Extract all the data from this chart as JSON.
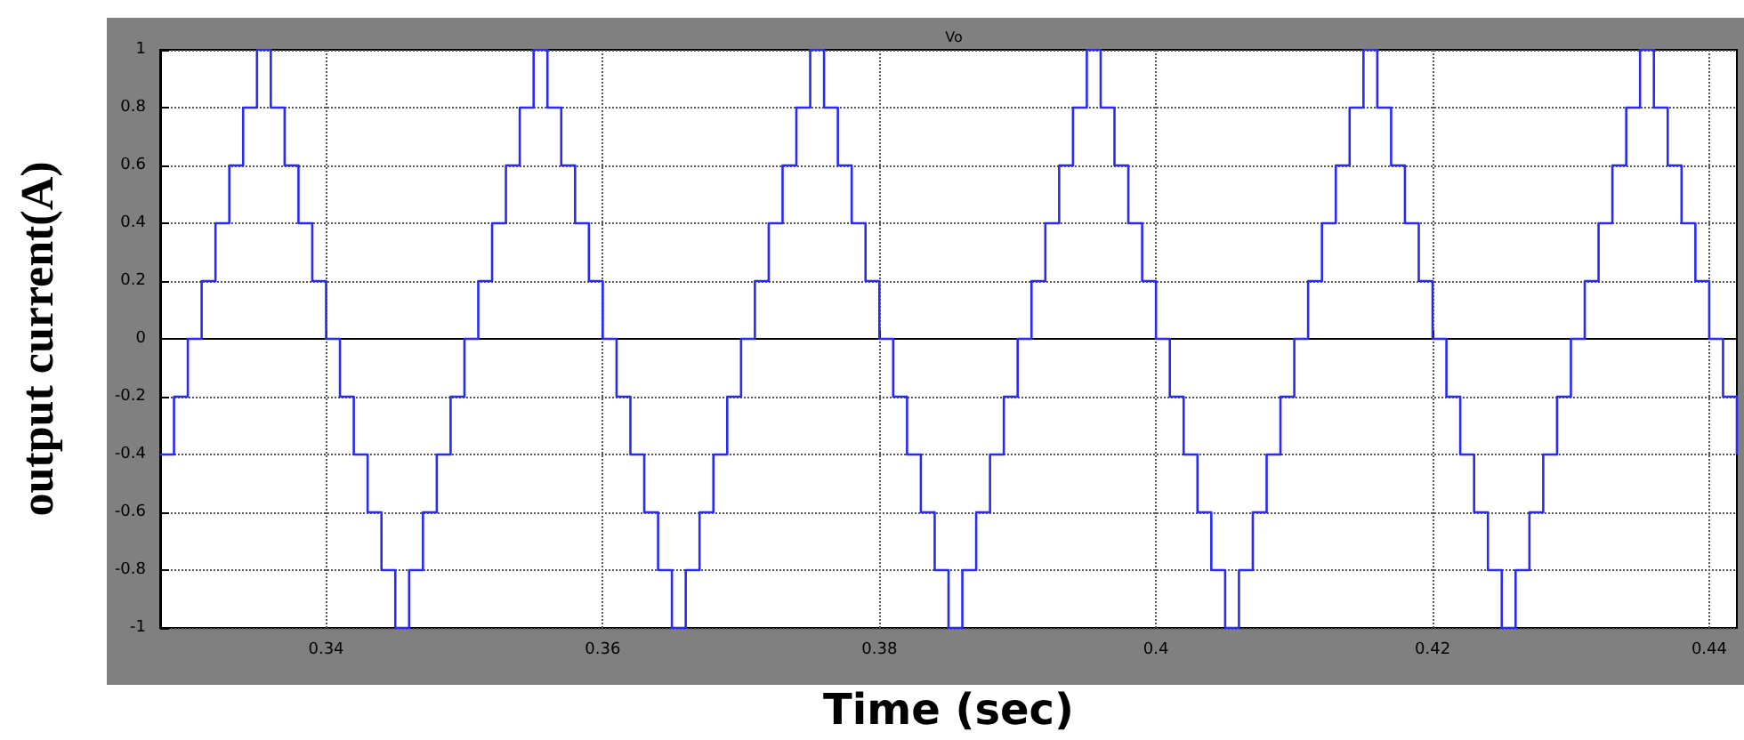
{
  "chart_data": {
    "type": "step",
    "title": "Vo",
    "xlabel": "Time (sec)",
    "ylabel": "output current(A)",
    "x": [
      0.328,
      0.329,
      0.33,
      0.331,
      0.332,
      0.333,
      0.334,
      0.335,
      0.336,
      0.337,
      0.338,
      0.339,
      0.34,
      0.341,
      0.342,
      0.343,
      0.344,
      0.345,
      0.346,
      0.347,
      0.348,
      0.349,
      0.35,
      0.351,
      0.352,
      0.353,
      0.354,
      0.355,
      0.356,
      0.357,
      0.358,
      0.359,
      0.36,
      0.361,
      0.362,
      0.363,
      0.364,
      0.365,
      0.366,
      0.367,
      0.368,
      0.369,
      0.37,
      0.371,
      0.372,
      0.373,
      0.374,
      0.375,
      0.376,
      0.377,
      0.378,
      0.379,
      0.38,
      0.381,
      0.382,
      0.383,
      0.384,
      0.385,
      0.386,
      0.387,
      0.388,
      0.389,
      0.39,
      0.391,
      0.392,
      0.393,
      0.394,
      0.395,
      0.396,
      0.397,
      0.398,
      0.399,
      0.4,
      0.401,
      0.402,
      0.403,
      0.404,
      0.405,
      0.406,
      0.407,
      0.408,
      0.409,
      0.41,
      0.411,
      0.412,
      0.413,
      0.414,
      0.415,
      0.416,
      0.417,
      0.418,
      0.419,
      0.42,
      0.421,
      0.422,
      0.423,
      0.424,
      0.425,
      0.426,
      0.427,
      0.428,
      0.429,
      0.43,
      0.431,
      0.432,
      0.433,
      0.434,
      0.435,
      0.436,
      0.437,
      0.438,
      0.439,
      0.44,
      0.441,
      0.442
    ],
    "series": [
      {
        "color": "#2a2af5",
        "values": [
          -0.4,
          -0.2,
          0,
          0.2,
          0.4,
          0.6,
          0.8,
          1,
          0.8,
          0.6,
          0.4,
          0.2,
          0,
          -0.2,
          -0.4,
          -0.6,
          -0.8,
          -1,
          -0.8,
          -0.6,
          -0.4,
          -0.2,
          0,
          0.2,
          0.4,
          0.6,
          0.8,
          1,
          0.8,
          0.6,
          0.4,
          0.2,
          0,
          -0.2,
          -0.4,
          -0.6,
          -0.8,
          -1,
          -0.8,
          -0.6,
          -0.4,
          -0.2,
          0,
          0.2,
          0.4,
          0.6,
          0.8,
          1,
          0.8,
          0.6,
          0.4,
          0.2,
          0,
          -0.2,
          -0.4,
          -0.6,
          -0.8,
          -1,
          -0.8,
          -0.6,
          -0.4,
          -0.2,
          0,
          0.2,
          0.4,
          0.6,
          0.8,
          1,
          0.8,
          0.6,
          0.4,
          0.2,
          0,
          -0.2,
          -0.4,
          -0.6,
          -0.8,
          -1,
          -0.8,
          -0.6,
          -0.4,
          -0.2,
          0,
          0.2,
          0.4,
          0.6,
          0.8,
          1,
          0.8,
          0.6,
          0.4,
          0.2,
          0,
          -0.2,
          -0.4,
          -0.6,
          -0.8,
          -1,
          -0.8,
          -0.6,
          -0.4,
          -0.2,
          0,
          0.2,
          0.4,
          0.6,
          0.8,
          1,
          0.8,
          0.6,
          0.4,
          0.2,
          0,
          -0.2,
          -0.4
        ]
      }
    ],
    "xlim": [
      0.328,
      0.442
    ],
    "xticks": [
      0.34,
      0.36,
      0.38,
      0.4,
      0.42,
      0.44
    ],
    "ylim": [
      -1,
      1
    ],
    "yticks": [
      -1,
      -0.8,
      -0.6,
      -0.4,
      -0.2,
      0,
      0.2,
      0.4,
      0.6,
      0.8,
      1
    ],
    "grid": true,
    "marker": "none",
    "line_style": "solid"
  }
}
